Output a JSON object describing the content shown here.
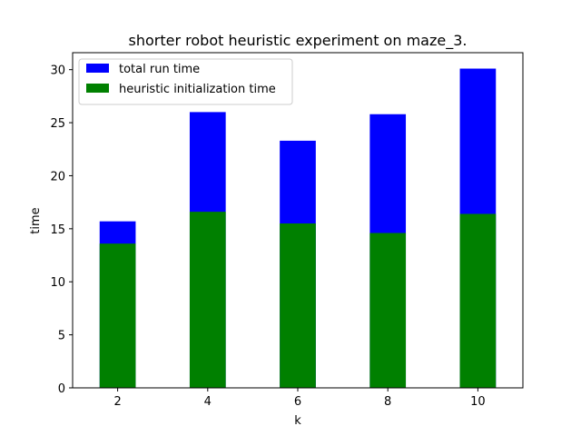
{
  "chart_data": {
    "type": "bar",
    "stacked": false,
    "title": "shorter robot heuristic experiment on maze_3.",
    "xlabel": "k",
    "ylabel": "time",
    "categories": [
      "2",
      "4",
      "6",
      "8",
      "10"
    ],
    "x": [
      2,
      4,
      6,
      8,
      10
    ],
    "xlim": [
      1,
      11
    ],
    "ylim": [
      0,
      31.6
    ],
    "yticks": [
      0,
      5,
      10,
      15,
      20,
      25,
      30
    ],
    "grid": false,
    "legend_position": "top-left",
    "series": [
      {
        "name": "total run time",
        "color": "#0000ff",
        "values": [
          15.7,
          26.0,
          23.3,
          25.8,
          30.1
        ]
      },
      {
        "name": "heuristic initialization time",
        "color": "#008000",
        "values": [
          13.6,
          16.6,
          15.5,
          14.6,
          16.4
        ]
      }
    ]
  }
}
